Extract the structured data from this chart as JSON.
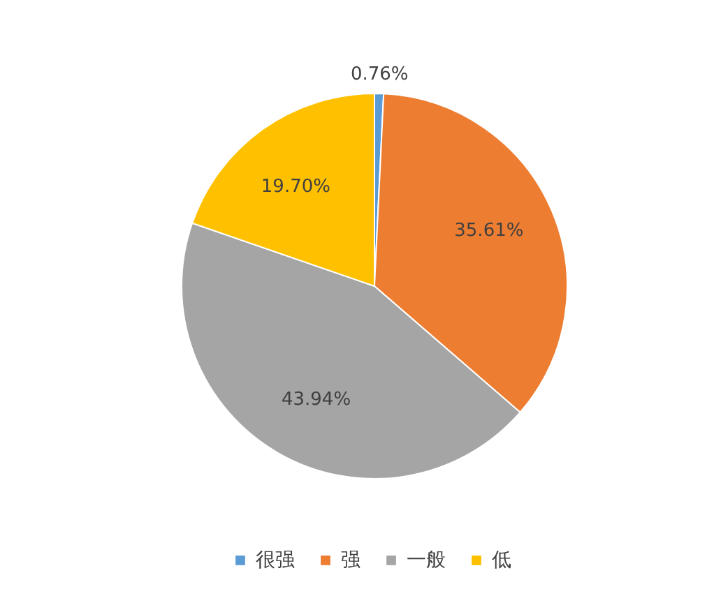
{
  "chart_data": {
    "type": "pie",
    "categories": [
      "很强",
      "强",
      "一般",
      "低"
    ],
    "values": [
      0.76,
      35.61,
      43.94,
      19.7
    ],
    "colors": [
      "#5b9bd5",
      "#ed7d31",
      "#a5a5a5",
      "#ffc000"
    ],
    "value_labels": [
      "0.76%",
      "35.61%",
      "43.94%",
      "19.70%"
    ],
    "legend": "bottom"
  }
}
